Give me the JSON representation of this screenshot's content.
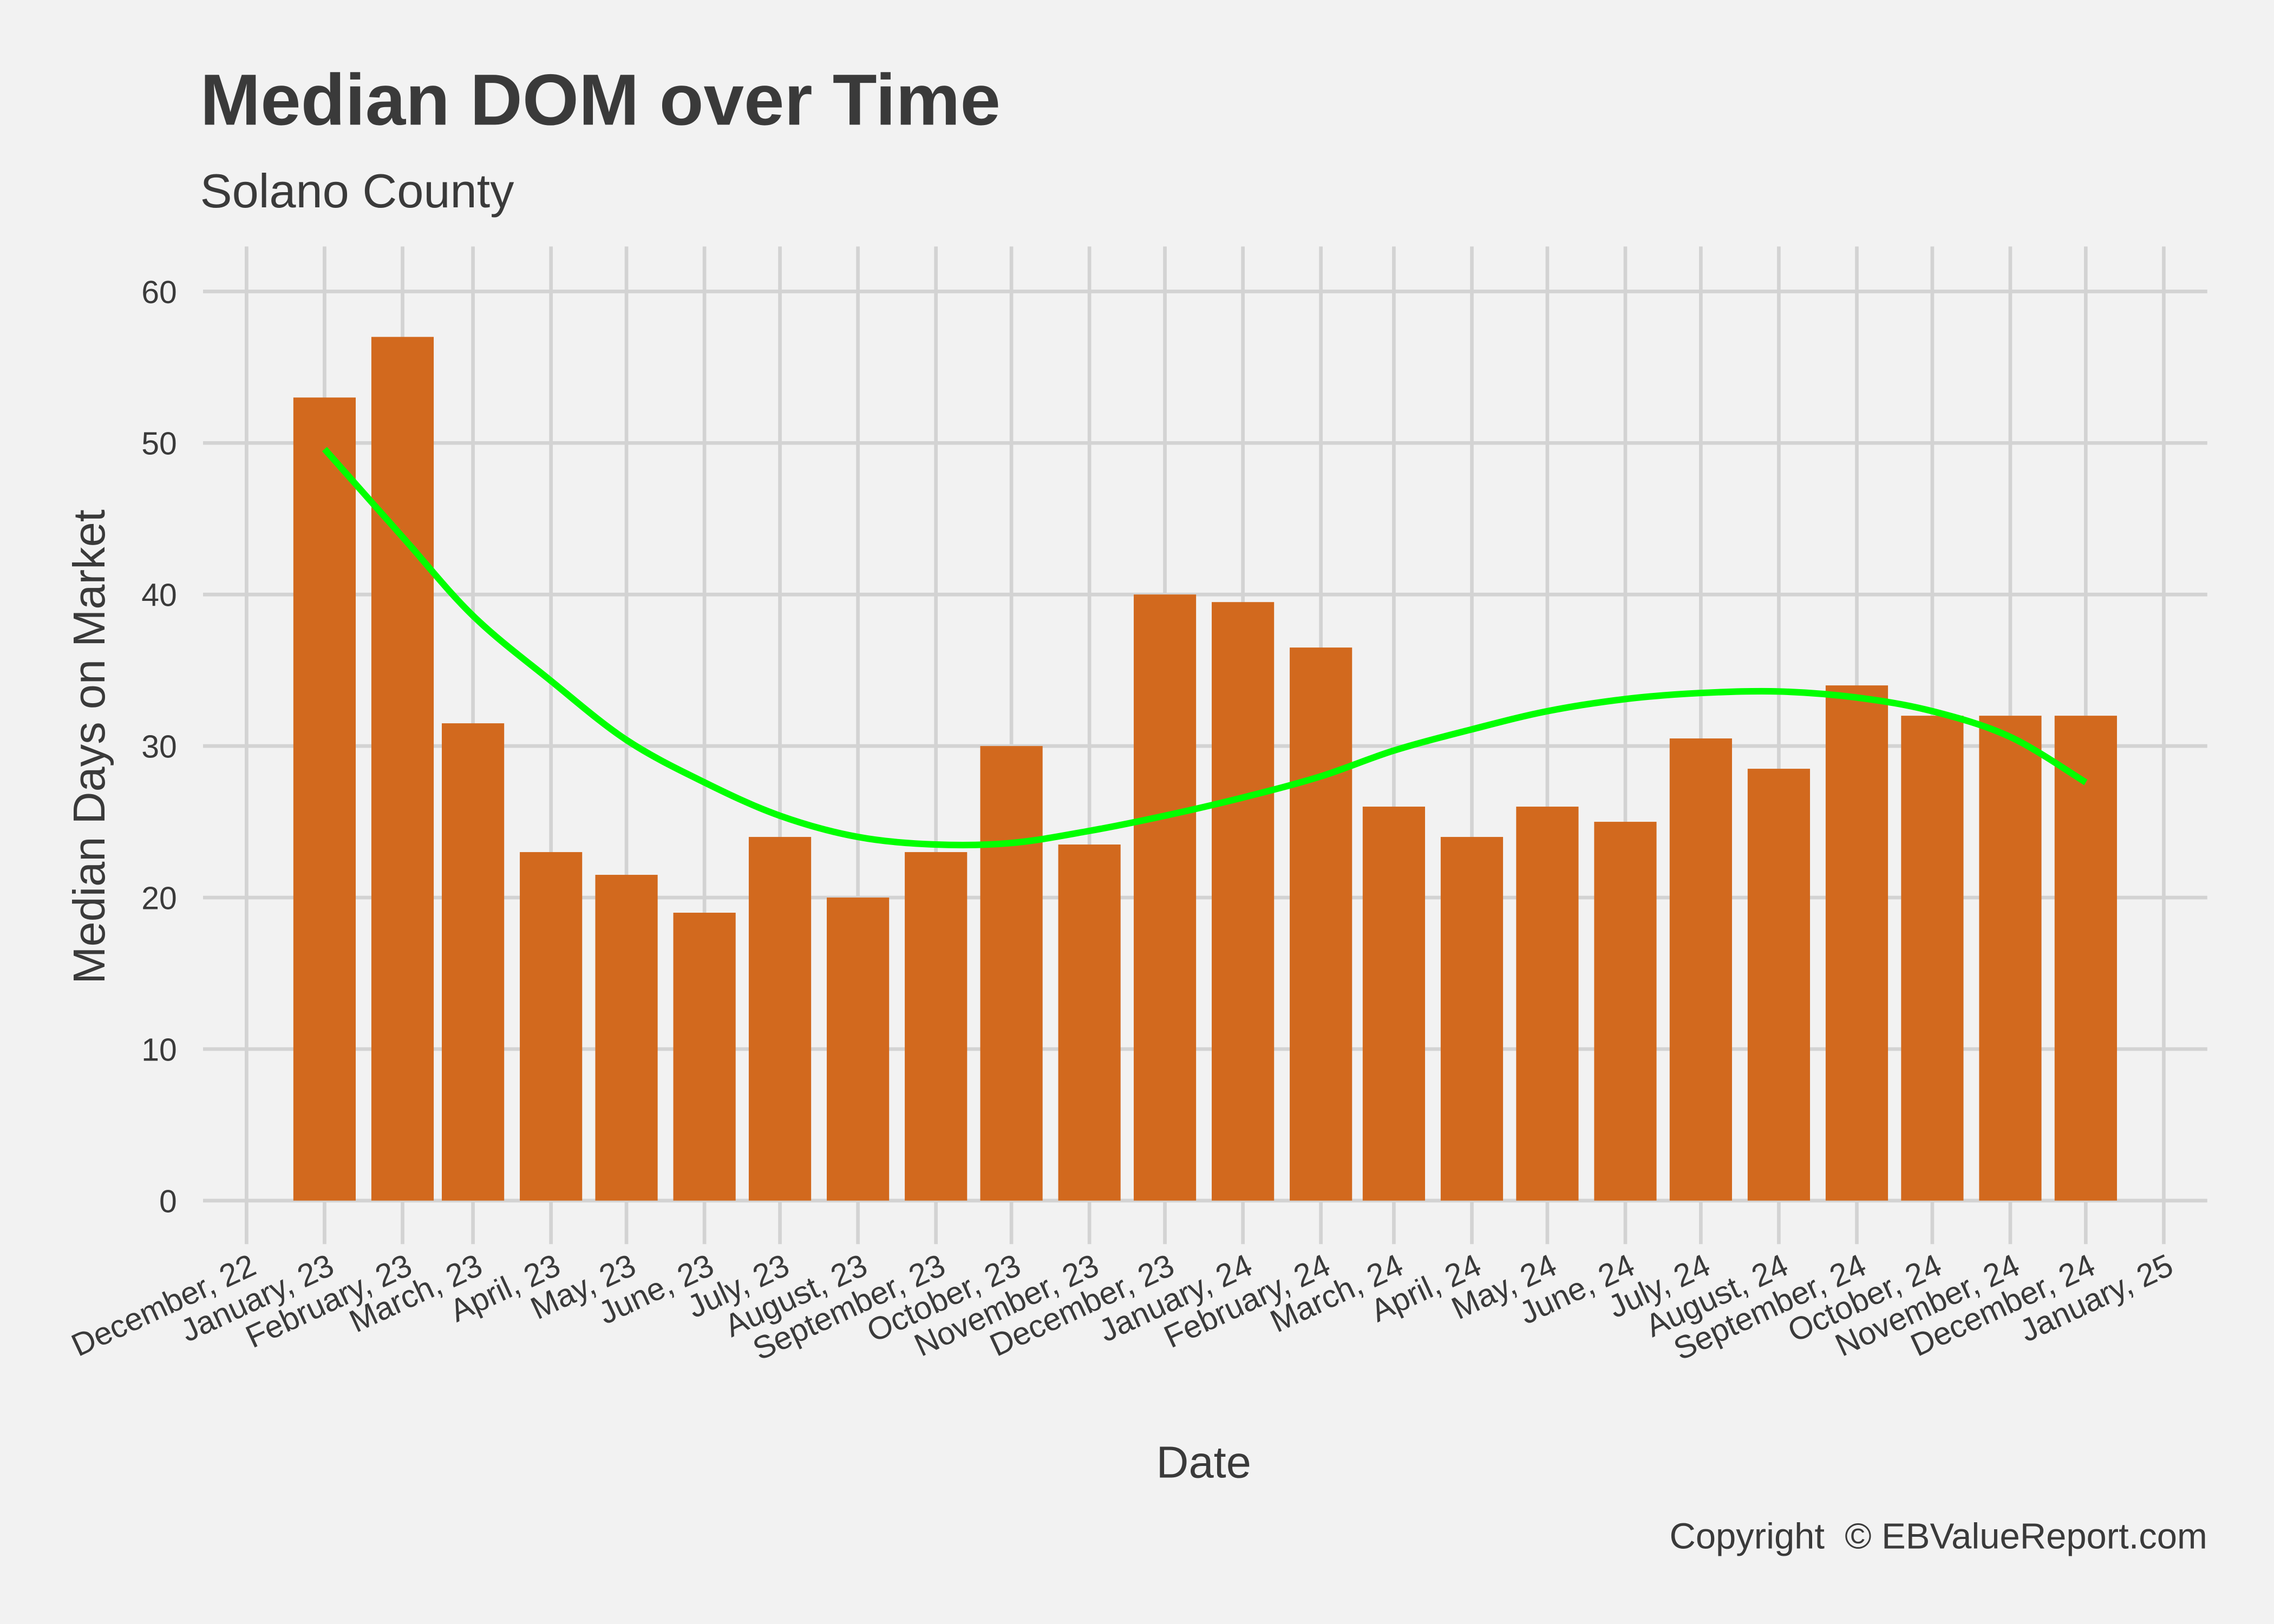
{
  "chart_data": {
    "type": "bar",
    "title": "Median DOM over Time",
    "subtitle": "Solano County",
    "xlabel": "Date",
    "ylabel": "Median Days on Market",
    "caption": "Copyright  © EBValueReport.com",
    "ylim": [
      0,
      62
    ],
    "yticks": [
      0,
      10,
      20,
      30,
      40,
      50,
      60
    ],
    "xticks": [
      "December, 22",
      "January, 23",
      "February, 23",
      "March, 23",
      "April, 23",
      "May, 23",
      "June, 23",
      "July, 23",
      "August, 23",
      "September, 23",
      "October, 23",
      "November, 23",
      "December, 23",
      "January, 24",
      "February, 24",
      "March, 24",
      "April, 24",
      "May, 24",
      "June, 24",
      "July, 24",
      "August, 24",
      "September, 24",
      "October, 24",
      "November, 24",
      "December, 24",
      "January, 25"
    ],
    "xtick_dates": [
      "2022-12",
      "2023-01",
      "2023-02",
      "2023-03",
      "2023-04",
      "2023-05",
      "2023-06",
      "2023-07",
      "2023-08",
      "2023-09",
      "2023-10",
      "2023-11",
      "2023-12",
      "2024-01",
      "2024-02",
      "2024-03",
      "2024-04",
      "2024-05",
      "2024-06",
      "2024-07",
      "2024-08",
      "2024-09",
      "2024-10",
      "2024-11",
      "2024-12",
      "2025-01"
    ],
    "categories": [
      "2023-01",
      "2023-02",
      "2023-03",
      "2023-04",
      "2023-05",
      "2023-06",
      "2023-07",
      "2023-08",
      "2023-09",
      "2023-10",
      "2023-11",
      "2023-12",
      "2024-01",
      "2024-02",
      "2024-03",
      "2024-04",
      "2024-05",
      "2024-06",
      "2024-07",
      "2024-08",
      "2024-09",
      "2024-10",
      "2024-11",
      "2024-12"
    ],
    "values": [
      53,
      57,
      31.5,
      23,
      21.5,
      19,
      24,
      20,
      23,
      30,
      23.5,
      40,
      39.5,
      36.5,
      26,
      24,
      26,
      25,
      30.5,
      28.5,
      34,
      32,
      32,
      32
    ],
    "smooth": [
      49.6,
      43.8,
      38.6,
      34.3,
      30.4,
      27.6,
      25.4,
      24.0,
      23.5,
      23.6,
      24.4,
      25.4,
      26.6,
      28.0,
      29.7,
      31.1,
      32.3,
      33.1,
      33.5,
      33.6,
      33.2,
      32.3,
      30.6,
      27.6
    ],
    "grid": true,
    "colors": {
      "bar": "#d2691e",
      "smooth": "#00ff00",
      "grid": "#d3d3d3",
      "background": "#f2f2f2",
      "text": "#3a3a3a"
    }
  }
}
